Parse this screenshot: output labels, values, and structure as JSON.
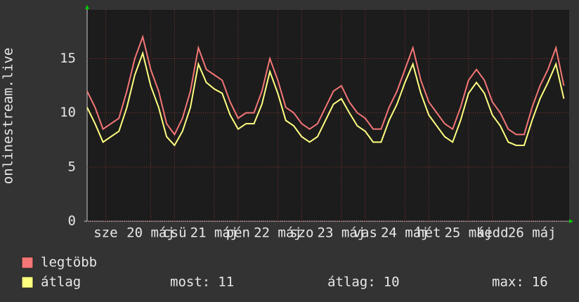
{
  "chart_data": {
    "type": "line",
    "y_label": "onlinestream.live",
    "x": [
      0,
      3,
      6,
      9,
      12,
      15,
      18,
      21,
      24,
      27,
      30,
      33,
      36,
      39,
      42,
      45,
      48,
      51,
      54,
      57,
      60,
      63,
      66,
      69,
      72,
      75,
      78,
      81,
      84,
      87,
      90,
      93,
      96,
      99,
      102,
      105,
      108,
      111,
      114,
      117,
      120,
      123,
      126,
      129,
      132,
      135,
      138,
      141,
      144,
      147,
      150,
      153,
      156,
      159,
      162,
      165,
      168,
      171,
      174,
      177,
      180
    ],
    "xlim": [
      0,
      182
    ],
    "xticks": [
      {
        "value": 7,
        "label": "sze"
      },
      {
        "value": 24,
        "label": "20 máj"
      },
      {
        "value": 33,
        "label": "csü"
      },
      {
        "value": 48,
        "label": "21 máj"
      },
      {
        "value": 57,
        "label": "pén"
      },
      {
        "value": 72,
        "label": "22 máj"
      },
      {
        "value": 81,
        "label": "szo"
      },
      {
        "value": 96,
        "label": "23 máj"
      },
      {
        "value": 105,
        "label": "vas"
      },
      {
        "value": 120,
        "label": "24 máj"
      },
      {
        "value": 129,
        "label": "hét"
      },
      {
        "value": 144,
        "label": "25 máj"
      },
      {
        "value": 153,
        "label": "kedd"
      },
      {
        "value": 168,
        "label": "26 máj"
      }
    ],
    "ylim": [
      0,
      19.5
    ],
    "yticks": [
      0,
      5,
      10,
      15
    ],
    "grid": true,
    "series": [
      {
        "name": "legtöbb",
        "color": "#f47676",
        "values": [
          12,
          10.5,
          8.5,
          9,
          9.5,
          12,
          15,
          17,
          14,
          12,
          9,
          8,
          9.5,
          12,
          16,
          14,
          13.5,
          13,
          11,
          9.5,
          10,
          10,
          12,
          15,
          13,
          10.5,
          10,
          9,
          8.5,
          9,
          10.5,
          12,
          12.5,
          11,
          10,
          9.5,
          8.5,
          8.5,
          10.5,
          12,
          14,
          16,
          13,
          11,
          10,
          9,
          8.5,
          10.5,
          13,
          14,
          13,
          11,
          10,
          8.5,
          8,
          8,
          10.5,
          12.5,
          14,
          16,
          12.5
        ]
      },
      {
        "name": "átlag",
        "color": "#ffff80",
        "values": [
          10.5,
          9,
          7.3,
          7.8,
          8.3,
          10.5,
          13.5,
          15.5,
          12.5,
          10.5,
          7.8,
          7,
          8.3,
          10.5,
          14.5,
          12.8,
          12.2,
          11.8,
          9.8,
          8.5,
          9,
          9,
          10.8,
          13.8,
          11.8,
          9.3,
          8.8,
          7.8,
          7.3,
          7.8,
          9.3,
          10.8,
          11.3,
          10,
          8.8,
          8.3,
          7.3,
          7.3,
          9.3,
          10.8,
          12.8,
          14.5,
          11.8,
          9.8,
          8.8,
          7.8,
          7.3,
          9.3,
          11.8,
          12.8,
          11.8,
          9.8,
          8.8,
          7.3,
          7,
          7,
          9.3,
          11.3,
          12.8,
          14.5,
          11.3
        ]
      }
    ],
    "stats": [
      {
        "label": "most:",
        "value": 11
      },
      {
        "label": "átlag:",
        "value": 10
      },
      {
        "label": "max:",
        "value": 16
      }
    ]
  }
}
